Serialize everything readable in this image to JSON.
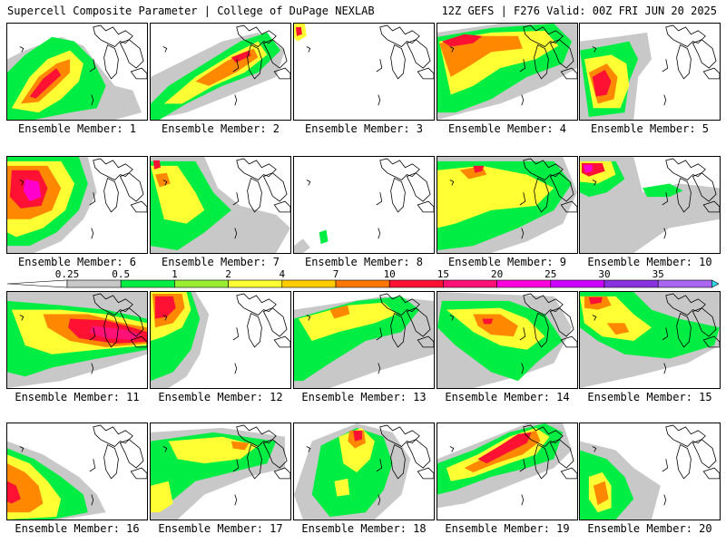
{
  "header": {
    "title": "Supercell Composite Parameter | College of DuPage NEXLAB",
    "run_info": "12Z GEFS | F276 Valid: 00Z FRI JUN 20 2025"
  },
  "colorbar": {
    "ticks": [
      "0.25",
      "0.5",
      "1",
      "2",
      "4",
      "7",
      "10",
      "15",
      "20",
      "25",
      "30",
      "35"
    ],
    "colors": [
      "#c8c8c8",
      "#00ee44",
      "#99ee33",
      "#ffff33",
      "#ffcc00",
      "#ff7700",
      "#ff1133",
      "#ff1177",
      "#ff00dd",
      "#cc00ff",
      "#8833dd",
      "#aa66ee",
      "#33ddee"
    ]
  },
  "members": [
    {
      "label": "Ensemble Member: 1"
    },
    {
      "label": "Ensemble Member: 2"
    },
    {
      "label": "Ensemble Member: 3"
    },
    {
      "label": "Ensemble Member: 4"
    },
    {
      "label": "Ensemble Member: 5"
    },
    {
      "label": "Ensemble Member: 6"
    },
    {
      "label": "Ensemble Member: 7"
    },
    {
      "label": "Ensemble Member: 8"
    },
    {
      "label": "Ensemble Member: 9"
    },
    {
      "label": "Ensemble Member: 10"
    },
    {
      "label": "Ensemble Member: 11"
    },
    {
      "label": "Ensemble Member: 12"
    },
    {
      "label": "Ensemble Member: 13"
    },
    {
      "label": "Ensemble Member: 14"
    },
    {
      "label": "Ensemble Member: 15"
    },
    {
      "label": "Ensemble Member: 16"
    },
    {
      "label": "Ensemble Member: 17"
    },
    {
      "label": "Ensemble Member: 18"
    },
    {
      "label": "Ensemble Member: 19"
    },
    {
      "label": "Ensemble Member: 20"
    }
  ]
}
